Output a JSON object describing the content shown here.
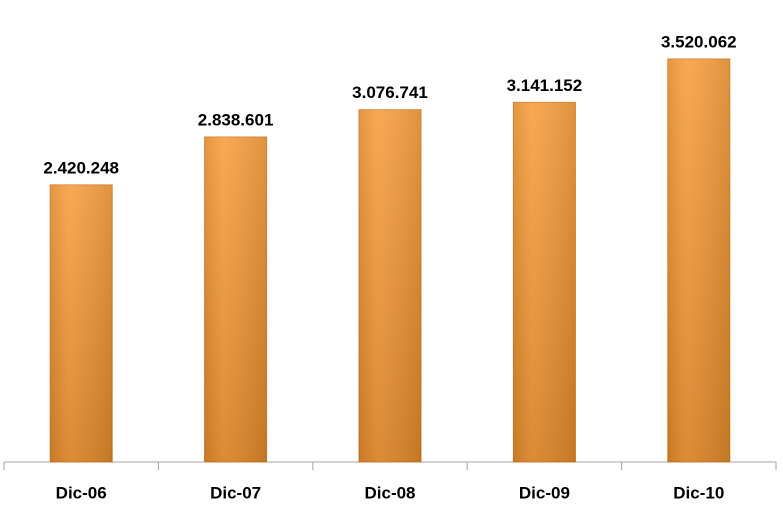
{
  "chart_data": {
    "type": "bar",
    "categories": [
      "Dic-06",
      "Dic-07",
      "Dic-08",
      "Dic-09",
      "Dic-10"
    ],
    "values": [
      2420248,
      2838601,
      3076741,
      3141152,
      3520062
    ],
    "value_labels": [
      "2.420.248",
      "2.838.601",
      "3.076.741",
      "3.141.152",
      "3.520.062"
    ],
    "color": "#f5962f"
  }
}
